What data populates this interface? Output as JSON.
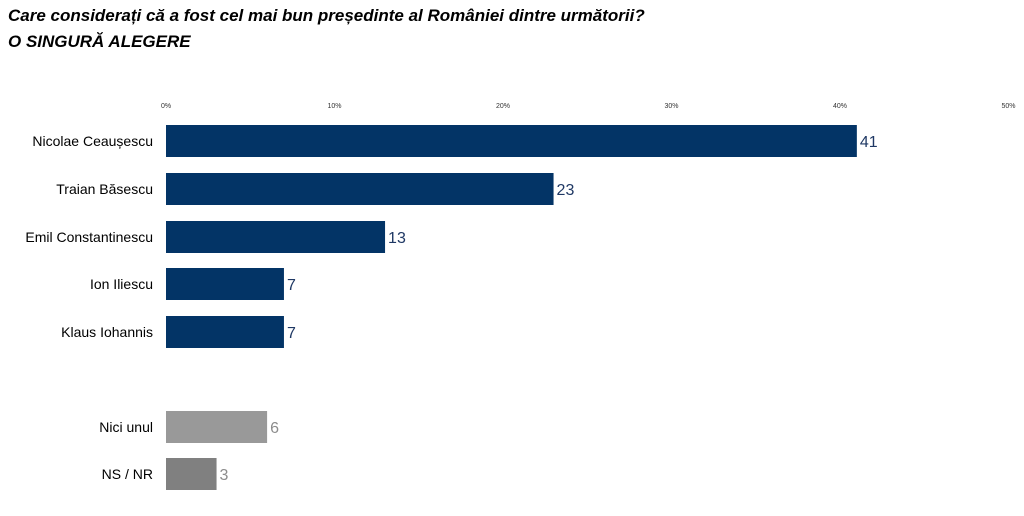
{
  "title": "Care considerați că a fost cel mai bun președinte al României dintre următorii?",
  "subtitle": "O SINGURĂ ALEGERE",
  "colors": {
    "main": "#033466",
    "nici": "#999999",
    "nsnr": "#808080",
    "main_label": "#1f3864",
    "gray_label": "#8c8c8c"
  },
  "chart_data": {
    "type": "bar",
    "orientation": "horizontal",
    "title": "Care considerați că a fost cel mai bun președinte al României dintre următorii?",
    "subtitle": "O SINGURĂ ALEGERE",
    "xlim": [
      0,
      50
    ],
    "ticks": [
      "0%",
      "10%",
      "20%",
      "30%",
      "40%",
      "50%"
    ],
    "tick_values": [
      0,
      10,
      20,
      30,
      40,
      50
    ],
    "categories": [
      "Nicolae Ceaușescu",
      "Traian Băsescu",
      "Emil Constantinescu",
      "Ion Iliescu",
      "Klaus Iohannis",
      "Nici unul",
      "NS / NR"
    ],
    "values": [
      41,
      23,
      13,
      7,
      7,
      6,
      3
    ],
    "grid": false
  }
}
